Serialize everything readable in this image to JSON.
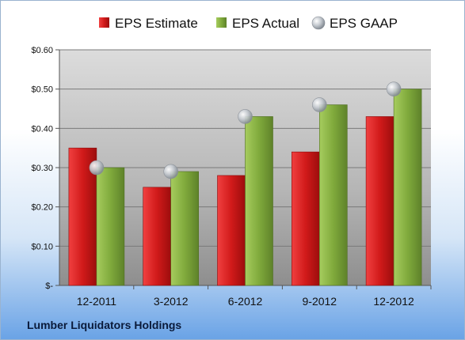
{
  "company_label": "Lumber Liquidators Holdings",
  "colors": {
    "estimate": "#d11a1a",
    "actual": "#7ea83a",
    "gaap": "#a9b0b8"
  },
  "chart_data": {
    "type": "bar",
    "categories": [
      "12-2011",
      "3-2012",
      "6-2012",
      "9-2012",
      "12-2012"
    ],
    "series": [
      {
        "name": "EPS Estimate",
        "kind": "bar",
        "values": [
          0.35,
          0.25,
          0.28,
          0.34,
          0.43
        ]
      },
      {
        "name": "EPS Actual",
        "kind": "bar",
        "values": [
          0.3,
          0.29,
          0.43,
          0.46,
          0.5
        ]
      },
      {
        "name": "EPS GAAP",
        "kind": "marker",
        "values": [
          0.3,
          0.29,
          0.43,
          0.46,
          0.5
        ]
      }
    ],
    "yticks": [
      0,
      0.1,
      0.2,
      0.3,
      0.4,
      0.5,
      0.6
    ],
    "ytick_labels": [
      "$-",
      "$0.10",
      "$0.20",
      "$0.30",
      "$0.40",
      "$0.50",
      "$0.60"
    ],
    "ylim": [
      0,
      0.6
    ],
    "grid": true,
    "legend_position": "top"
  }
}
